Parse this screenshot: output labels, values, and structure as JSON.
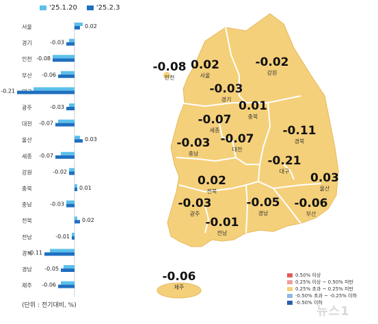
{
  "legend": {
    "items": [
      {
        "label": "'25.1.20",
        "color": "#5bc0eb"
      },
      {
        "label": "'25.2.3",
        "color": "#1f6fc0"
      }
    ]
  },
  "unit_note": "(단위 : 전기대비, %)",
  "chart_data": {
    "type": "bar",
    "orientation": "horizontal",
    "categories": [
      "서울",
      "경기",
      "인천",
      "부산",
      "대구",
      "광주",
      "대전",
      "울산",
      "세종",
      "강원",
      "충북",
      "충남",
      "전북",
      "전남",
      "경북",
      "경남",
      "제주"
    ],
    "series": [
      {
        "name": "'25.1.20",
        "values": [
          0.03,
          -0.02,
          -0.08,
          -0.05,
          -0.15,
          -0.02,
          -0.06,
          0.02,
          -0.05,
          -0.02,
          0.01,
          -0.03,
          0.01,
          -0.01,
          -0.09,
          -0.04,
          -0.05
        ]
      },
      {
        "name": "'25.2.3",
        "values": [
          0.02,
          -0.03,
          -0.08,
          -0.06,
          -0.21,
          -0.03,
          -0.07,
          0.03,
          -0.07,
          -0.02,
          0.01,
          -0.03,
          0.02,
          -0.01,
          -0.11,
          -0.05,
          -0.06
        ]
      }
    ],
    "data_labels": [
      "0.02",
      "-0.03",
      "-0.08",
      "-0.06",
      "-0.21",
      "-0.03",
      "-0.07",
      "0.03",
      "-0.07",
      "-0.02",
      "0.01",
      "-0.03",
      "0.02",
      "-0.01",
      "-0.11",
      "-0.05",
      "-0.06"
    ],
    "xlim": [
      -0.22,
      0.05
    ]
  },
  "map": {
    "regions": [
      {
        "name": "인천",
        "value": "-0.08"
      },
      {
        "name": "서울",
        "value": "0.02"
      },
      {
        "name": "경기",
        "value": "-0.03"
      },
      {
        "name": "강원",
        "value": "-0.02"
      },
      {
        "name": "충북",
        "value": "0.01"
      },
      {
        "name": "세종",
        "value": "-0.07"
      },
      {
        "name": "대전",
        "value": "-0.07"
      },
      {
        "name": "충남",
        "value": "-0.03"
      },
      {
        "name": "경북",
        "value": "-0.11"
      },
      {
        "name": "대구",
        "value": "-0.21"
      },
      {
        "name": "전북",
        "value": "0.02"
      },
      {
        "name": "울산",
        "value": "0.03"
      },
      {
        "name": "광주",
        "value": "-0.03"
      },
      {
        "name": "경남",
        "value": "-0.05"
      },
      {
        "name": "부산",
        "value": "-0.06"
      },
      {
        "name": "전남",
        "value": "-0.01"
      },
      {
        "name": "제주",
        "value": "-0.06"
      }
    ],
    "land_color": "#f5d07a",
    "border_color": "#ffffff",
    "legend": [
      {
        "label": "0.50% 이상",
        "color": "#e05a5a"
      },
      {
        "label": "0.25% 이상 ~ 0.50% 미만",
        "color": "#f0a0a0"
      },
      {
        "label": "0.25% 초과 ~ 0.25% 미만",
        "color": "#f5d07a"
      },
      {
        "label": "-0.50% 초과 ~ -0.25% 이하",
        "color": "#8fb8e0"
      },
      {
        "label": "-0.50% 이하",
        "color": "#2d5fa8"
      }
    ]
  },
  "watermark": "뉴스1"
}
